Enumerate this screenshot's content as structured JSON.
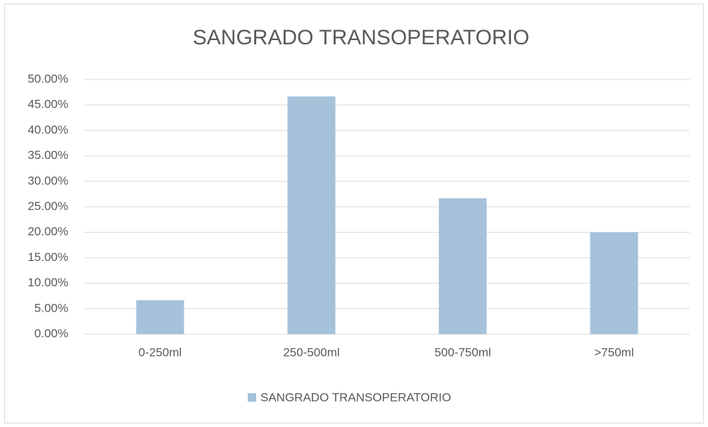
{
  "chart_data": {
    "type": "bar",
    "title": "SANGRADO TRANSOPERATORIO",
    "categories": [
      "0-250ml",
      "250-500ml",
      "500-750ml",
      ">750ml"
    ],
    "series": [
      {
        "name": "SANGRADO TRANSOPERATORIO",
        "color": "#a5c2da",
        "values": [
          6.67,
          46.67,
          26.67,
          20.0
        ]
      }
    ],
    "ylim": [
      0,
      50
    ],
    "yticks": [
      {
        "value": 0,
        "label": "0.00%"
      },
      {
        "value": 5,
        "label": "5.00%"
      },
      {
        "value": 10,
        "label": "10.00%"
      },
      {
        "value": 15,
        "label": "15.00%"
      },
      {
        "value": 20,
        "label": "20.00%"
      },
      {
        "value": 25,
        "label": "25.00%"
      },
      {
        "value": 30,
        "label": "30.00%"
      },
      {
        "value": 35,
        "label": "35.00%"
      },
      {
        "value": 40,
        "label": "40.00%"
      },
      {
        "value": 45,
        "label": "45.00%"
      },
      {
        "value": 50,
        "label": "50.00%"
      }
    ],
    "grid": true,
    "legend": "bottom"
  }
}
